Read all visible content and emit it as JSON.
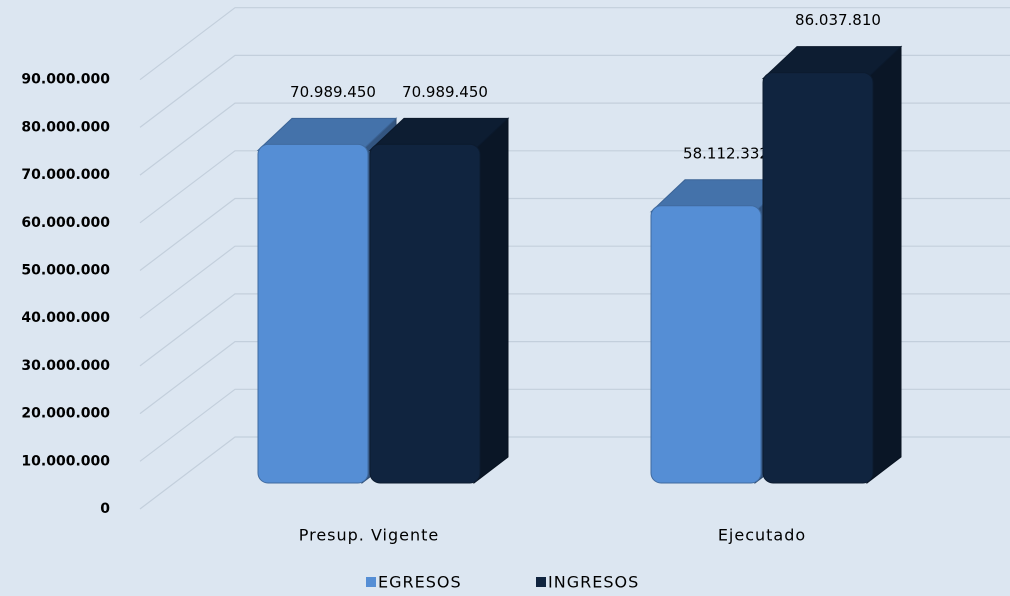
{
  "chart_data": {
    "type": "bar3d",
    "categories": [
      "Presup. Vigente",
      "Ejecutado"
    ],
    "series": [
      {
        "name": "EGRESOS",
        "color": "#558ed5",
        "values": [
          70989450,
          58112332
        ],
        "value_labels": [
          "70.989.450",
          "58.112.332"
        ]
      },
      {
        "name": "INGRESOS",
        "color": "#10243f",
        "values": [
          70989450,
          86037810
        ],
        "value_labels": [
          "70.989.450",
          "86.037.810"
        ]
      }
    ],
    "ylim": [
      0,
      100000000
    ],
    "yticks": [
      0,
      {
        "value": 10000000,
        "label": "10.000.000"
      },
      {
        "value": 20000000,
        "label": "20.000.000"
      },
      {
        "value": 30000000,
        "label": "30.000.000"
      },
      {
        "value": 40000000,
        "label": "40.000.000"
      },
      {
        "value": 50000000,
        "label": "50.000.000"
      },
      {
        "value": 60000000,
        "label": "60.000.000"
      },
      {
        "value": 70000000,
        "label": "70.000.000"
      },
      {
        "value": 80000000,
        "label": "80.000.000"
      },
      {
        "value": 90000000,
        "label": "90.000.000"
      }
    ],
    "grid": true,
    "legend": "bottom"
  }
}
